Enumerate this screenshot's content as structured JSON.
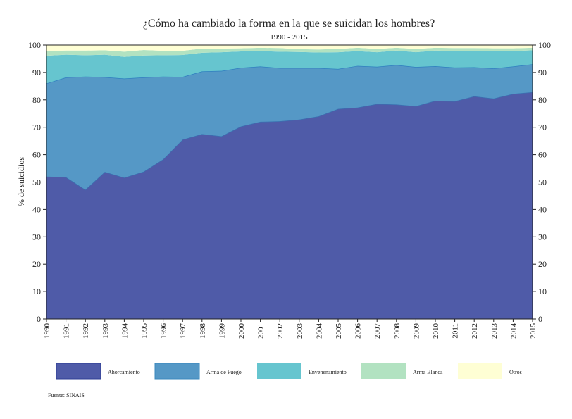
{
  "chart_data": {
    "type": "area",
    "stacked": true,
    "title": "¿Cómo ha cambiado la forma en la que se suicidan los hombres?",
    "subtitle": "1990 - 2015",
    "ylabel": "% de suicidios",
    "xlabel": "",
    "ylim": [
      0,
      100
    ],
    "yticks": [
      0,
      10,
      20,
      30,
      40,
      50,
      60,
      70,
      80,
      90,
      100
    ],
    "x": [
      1990,
      1991,
      1992,
      1993,
      1994,
      1995,
      1996,
      1997,
      1998,
      1999,
      2000,
      2001,
      2002,
      2003,
      2004,
      2005,
      2006,
      2007,
      2008,
      2009,
      2010,
      2011,
      2012,
      2013,
      2014,
      2015
    ],
    "legend_position": "bottom",
    "grid": false,
    "series": [
      {
        "name": "Ahorcamiento",
        "color": "#4f5ba8",
        "values": [
          52,
          51.8,
          47.2,
          53.7,
          51.6,
          53.8,
          58.3,
          65.5,
          67.5,
          66.7,
          70.3,
          72,
          72.2,
          72.8,
          74,
          76.7,
          77.2,
          78.5,
          78.3,
          77.7,
          79.7,
          79.5,
          81.3,
          80.5,
          82.2,
          82.8
        ]
      },
      {
        "name": "Arma de Fuego",
        "color": "#5598c6",
        "values": [
          34,
          36.4,
          41.3,
          34.6,
          36.2,
          34.4,
          30.2,
          22.9,
          22.9,
          23.9,
          21.4,
          20.2,
          19.4,
          18.8,
          17.6,
          14.6,
          15.2,
          13.6,
          14.4,
          14.3,
          12.6,
          12.3,
          10.6,
          11,
          10,
          10.2
        ]
      },
      {
        "name": "Envenenamiento",
        "color": "#66c5cf",
        "values": [
          10.1,
          8.3,
          7.8,
          8.2,
          7.9,
          8,
          7.8,
          8,
          6.8,
          6.8,
          6,
          5.6,
          6,
          5.9,
          5.7,
          6.1,
          5.4,
          5.3,
          5.3,
          5.4,
          5.7,
          6,
          5.9,
          6.2,
          5.6,
          5.1
        ]
      },
      {
        "name": "Arma Blanca",
        "color": "#b2e2c1",
        "values": [
          1.7,
          1.5,
          1.7,
          1.6,
          1.9,
          2,
          1.6,
          1.5,
          1.5,
          1.3,
          1.1,
          1.2,
          1.3,
          1,
          1.1,
          1.2,
          1.2,
          1.2,
          1,
          1.2,
          1,
          1.1,
          1.1,
          1.1,
          1,
          0.9
        ]
      },
      {
        "name": "Otros",
        "color": "#fefed4",
        "values": [
          2.2,
          2,
          2,
          1.9,
          2.4,
          1.8,
          2.1,
          2.1,
          1.3,
          1.3,
          1.2,
          1,
          1.1,
          1.5,
          1.6,
          1.4,
          1,
          1.4,
          1,
          1.4,
          1,
          1.1,
          1.1,
          1.2,
          1.2,
          1
        ]
      }
    ],
    "source": "Fuente: SINAIS"
  }
}
